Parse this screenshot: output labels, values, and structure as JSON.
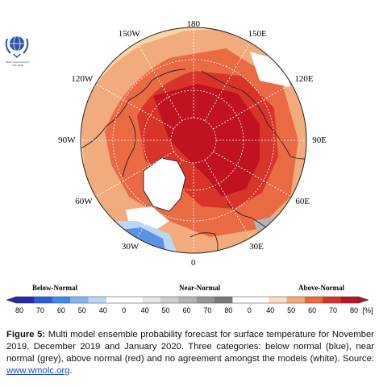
{
  "logo": {
    "lines": [
      "WMO Lead Centre for",
      "LRF-MME"
    ]
  },
  "map": {
    "longitude_labels": [
      {
        "id": "lon-180",
        "text": "180"
      },
      {
        "id": "lon-150e",
        "text": "150E"
      },
      {
        "id": "lon-120e",
        "text": "120E"
      },
      {
        "id": "lon-90e",
        "text": "90E"
      },
      {
        "id": "lon-60e",
        "text": "60E"
      },
      {
        "id": "lon-30e",
        "text": "30E"
      },
      {
        "id": "lon-0",
        "text": "0"
      },
      {
        "id": "lon-30w",
        "text": "30W"
      },
      {
        "id": "lon-60w",
        "text": "60W"
      },
      {
        "id": "lon-90w",
        "text": "90W"
      },
      {
        "id": "lon-120w",
        "text": "120W"
      },
      {
        "id": "lon-150w",
        "text": "150W"
      }
    ],
    "colors": {
      "ocean_above": "#f6d6a4",
      "above_light": "#f2ab7c",
      "above_mid": "#ea6a44",
      "above_strong": "#d8342a",
      "above_max": "#c1121f",
      "below": "#5a92e6",
      "below_light": "#bcd7f5",
      "near_normal": "#b4b4b4",
      "no_agreement": "#ffffff",
      "land_outline": "#222222",
      "graticule": "#ffffff"
    }
  },
  "legend": {
    "categories": {
      "below": "Below-Normal",
      "near": "Near-Normal",
      "above": "Above-Normal"
    },
    "ticks": [
      "80",
      "70",
      "60",
      "50",
      "40",
      "0",
      "40",
      "50",
      "60",
      "70",
      "80",
      "0",
      "40",
      "50",
      "60",
      "70",
      "80"
    ],
    "unit": "[%]",
    "below_colors": [
      "#2a2aa8",
      "#2a5ed8",
      "#3f8ae8",
      "#80b6f0",
      "#bcd7f5",
      "#ffffff"
    ],
    "near_colors": [
      "#ffffff",
      "#e6e6e6",
      "#cfcfcf",
      "#b4b4b4",
      "#969696",
      "#7a7a7a",
      "#ffffff"
    ],
    "above_colors": [
      "#ffffff",
      "#f8dfc4",
      "#f2ab7c",
      "#ea6a44",
      "#d8342a",
      "#c1121f"
    ]
  },
  "caption": {
    "label": "Figure 5:",
    "text": " Multi model ensemble probability forecast for surface temperature for November 2019, December 2019 and January 2020. Three categories: below normal (blue), near normal (grey), above normal (red) and no agreement amongst the models (white). Source: ",
    "link": "www.wmolc.org",
    "end": "."
  }
}
